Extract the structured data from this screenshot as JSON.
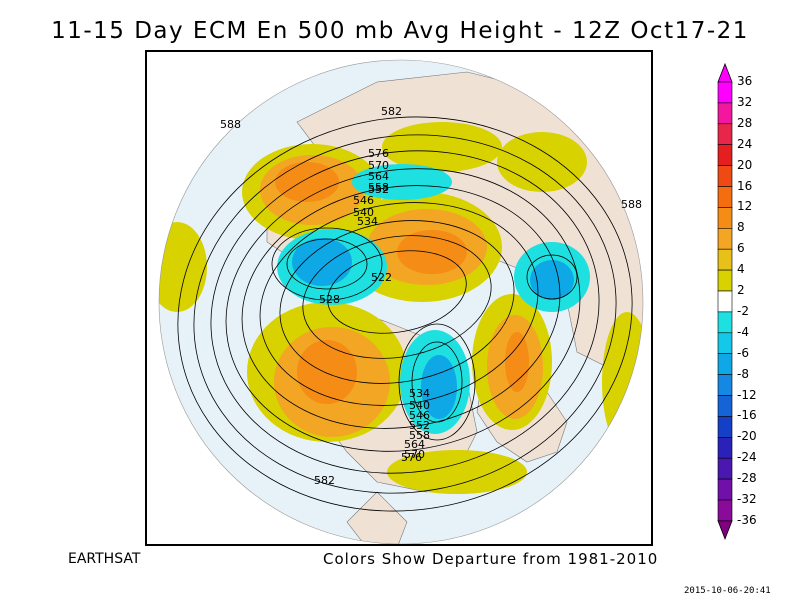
{
  "title": "11-15 Day ECM En 500 mb Avg Height - 12Z Oct17-21",
  "source_label": "EARTHSAT",
  "caption": "Colors Show Departure from 1981-2010",
  "timestamp": "2015-10-06-20:41",
  "scale": {
    "labels": [
      "36",
      "32",
      "28",
      "24",
      "20",
      "16",
      "12",
      "8",
      "6",
      "4",
      "2",
      "-2",
      "-4",
      "-6",
      "-8",
      "-12",
      "-16",
      "-20",
      "-24",
      "-28",
      "-32",
      "-36"
    ],
    "colors": [
      "#ff00ff",
      "#f2179e",
      "#e8264a",
      "#e51f1f",
      "#ef4a14",
      "#f46d0f",
      "#f58c16",
      "#f3a524",
      "#e8c01a",
      "#d7d200",
      "#ffffff",
      "#1fe0e0",
      "#13c8e8",
      "#0fa8e6",
      "#1488e2",
      "#1464d8",
      "#1440c8",
      "#2a22b8",
      "#4a18b0",
      "#7010a8",
      "#8a0a9a"
    ],
    "arrow_top_color": "#ff00ff",
    "arrow_bottom_color": "#800080"
  },
  "contour_labels": [
    {
      "text": "588"
    },
    {
      "text": "582"
    },
    {
      "text": "576"
    },
    {
      "text": "570"
    },
    {
      "text": "564"
    },
    {
      "text": "558"
    },
    {
      "text": "552"
    },
    {
      "text": "546"
    },
    {
      "text": "540"
    },
    {
      "text": "534"
    },
    {
      "text": "528"
    },
    {
      "text": "522"
    },
    {
      "text": "588"
    },
    {
      "text": "534"
    },
    {
      "text": "540"
    },
    {
      "text": "546"
    },
    {
      "text": "552"
    },
    {
      "text": "558"
    },
    {
      "text": "564"
    },
    {
      "text": "570"
    },
    {
      "text": "576"
    },
    {
      "text": "582"
    }
  ]
}
